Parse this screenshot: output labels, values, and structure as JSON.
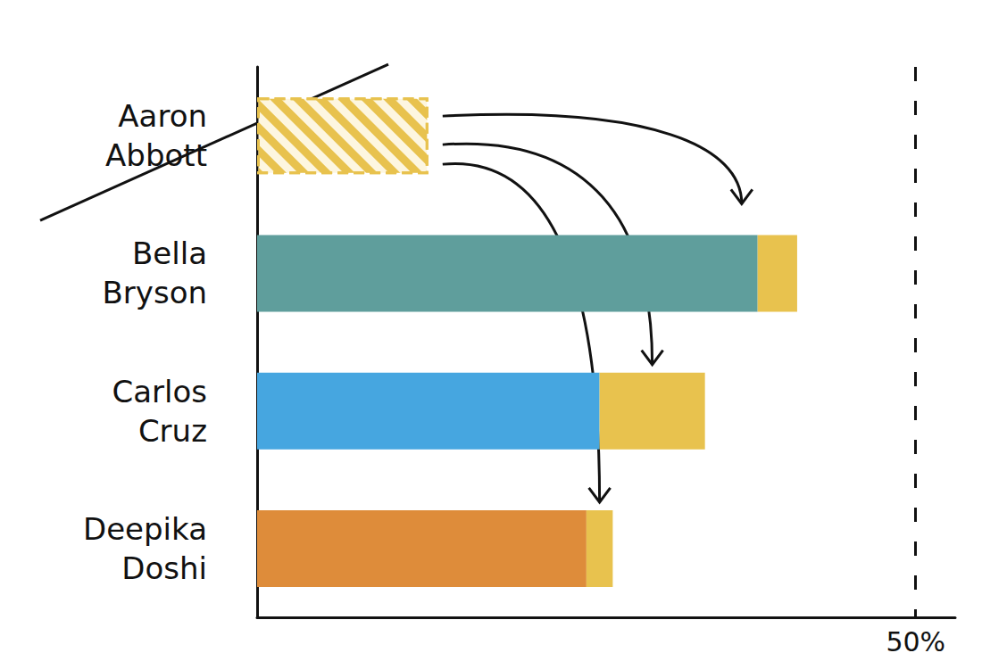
{
  "chart_data": {
    "type": "bar",
    "orientation": "horizontal",
    "stacked": true,
    "categories": [
      "Aaron Abbott",
      "Bella Bryson",
      "Carlos Cruz",
      "Deepika Doshi"
    ],
    "series": [
      {
        "values": [
          13,
          38,
          26,
          25
        ],
        "colors": [
          "#e8c24e",
          "#5f9e9c",
          "#46a6e0",
          "#de8c3a"
        ]
      },
      {
        "values": [
          null,
          3,
          8,
          2
        ],
        "color": "#e8c24e"
      }
    ],
    "xlim": [
      0,
      53
    ],
    "tick_labels": false,
    "grid": false,
    "annotations": [
      {
        "text": "50%",
        "x": 50
      }
    ]
  }
}
